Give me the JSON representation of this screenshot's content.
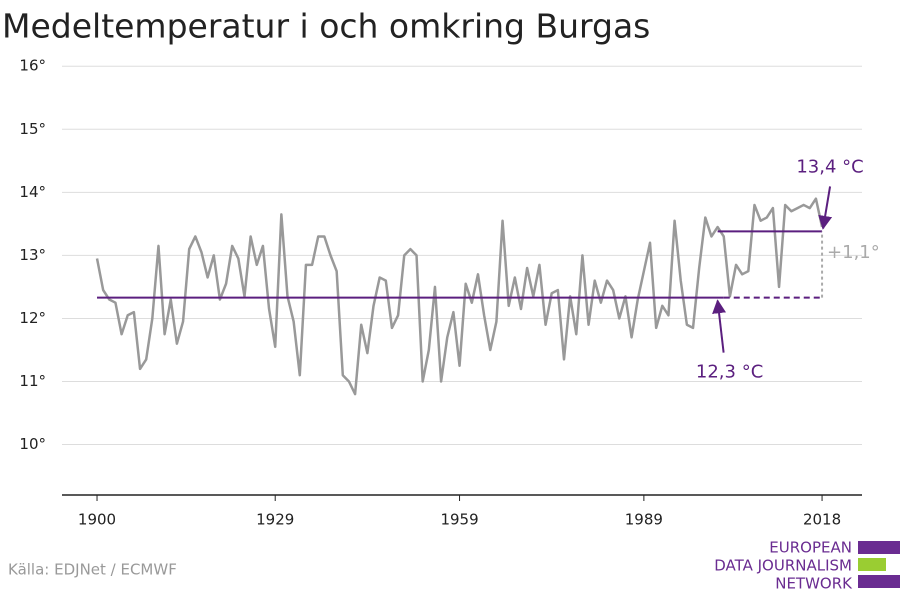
{
  "chart_data": {
    "type": "line",
    "title": "Medeltemperatur i och omkring Burgas",
    "source": "Källa: EDJNet / ECMWF",
    "logo": [
      "EUROPEAN",
      "DATA JOURNALISM",
      "NETWORK"
    ],
    "x": [
      1900,
      1901,
      1902,
      1903,
      1904,
      1905,
      1906,
      1907,
      1908,
      1909,
      1910,
      1911,
      1912,
      1913,
      1914,
      1915,
      1916,
      1917,
      1918,
      1919,
      1920,
      1921,
      1922,
      1923,
      1924,
      1925,
      1926,
      1927,
      1928,
      1929,
      1930,
      1931,
      1932,
      1933,
      1934,
      1935,
      1936,
      1937,
      1938,
      1939,
      1940,
      1941,
      1942,
      1943,
      1944,
      1945,
      1946,
      1947,
      1948,
      1949,
      1950,
      1951,
      1952,
      1953,
      1954,
      1955,
      1956,
      1957,
      1958,
      1959,
      1960,
      1961,
      1962,
      1963,
      1964,
      1965,
      1966,
      1967,
      1968,
      1969,
      1970,
      1971,
      1972,
      1973,
      1974,
      1975,
      1976,
      1977,
      1978,
      1979,
      1980,
      1981,
      1982,
      1983,
      1984,
      1985,
      1986,
      1987,
      1988,
      1989,
      1990,
      1991,
      1992,
      1993,
      1994,
      1995,
      1996,
      1997,
      1998,
      1999,
      2000,
      2001,
      2002,
      2003,
      2004,
      2005,
      2006,
      2007,
      2008,
      2009,
      2010,
      2011,
      2012,
      2013,
      2014,
      2015,
      2016,
      2017,
      2018
    ],
    "series": [
      {
        "name": "Medeltemperatur",
        "color": "#999999",
        "values": [
          12.95,
          12.45,
          12.3,
          12.25,
          11.75,
          12.05,
          12.1,
          11.2,
          11.35,
          12.0,
          13.15,
          11.75,
          12.3,
          11.6,
          11.95,
          13.1,
          13.3,
          13.05,
          12.65,
          13.0,
          12.3,
          12.55,
          13.15,
          12.95,
          12.35,
          13.3,
          12.85,
          13.15,
          12.15,
          11.55,
          13.65,
          12.35,
          11.95,
          11.1,
          12.85,
          12.85,
          13.3,
          13.3,
          13.0,
          12.75,
          11.1,
          11.0,
          10.8,
          11.9,
          11.45,
          12.2,
          12.65,
          12.6,
          11.85,
          12.05,
          13.0,
          13.1,
          13.0,
          11.0,
          11.5,
          12.5,
          11.0,
          11.7,
          12.1,
          11.25,
          12.55,
          12.25,
          12.7,
          12.05,
          11.5,
          11.95,
          13.55,
          12.2,
          12.65,
          12.15,
          12.8,
          12.35,
          12.85,
          11.9,
          12.4,
          12.45,
          11.35,
          12.35,
          11.75,
          13.0,
          11.9,
          12.6,
          12.25,
          12.6,
          12.45,
          12.0,
          12.35,
          11.7,
          12.3,
          12.75,
          13.2,
          11.85,
          12.2,
          12.05,
          13.55,
          12.6,
          11.9,
          11.85,
          12.8,
          13.6,
          13.3,
          13.45,
          13.3,
          12.35,
          12.85,
          12.7,
          12.75,
          13.8,
          13.55,
          13.6,
          13.75,
          12.5,
          13.8,
          13.7,
          13.75,
          13.8,
          13.75,
          13.9,
          13.45
        ]
      }
    ],
    "mean_lines": [
      {
        "value": 12.33,
        "from": 1900,
        "to": 2002,
        "color": "#5b1f7f"
      },
      {
        "value": 13.38,
        "from": 2001,
        "to": 2018,
        "color": "#5b1f7f"
      }
    ],
    "annotations": [
      {
        "text": "13,4 °C",
        "x": 2018,
        "y": 13.38
      },
      {
        "text": "12,3 °C",
        "x": 2001,
        "y": 12.33
      },
      {
        "text": "+1,1°",
        "x": 2018,
        "y": 12.85
      }
    ],
    "xlim": [
      1894.3,
      2024.5
    ],
    "ylim": [
      9.2,
      16.4
    ],
    "xticks": [
      1900,
      1929,
      1959,
      1989,
      2018
    ],
    "yticks": [
      {
        "value": 10,
        "label": "10°"
      },
      {
        "value": 11,
        "label": "11°"
      },
      {
        "value": 12,
        "label": "12°"
      },
      {
        "value": 13,
        "label": "13°"
      },
      {
        "value": 14,
        "label": "14°"
      },
      {
        "value": 15,
        "label": "15°"
      },
      {
        "value": 16,
        "label": "16°"
      }
    ],
    "grid": true
  }
}
